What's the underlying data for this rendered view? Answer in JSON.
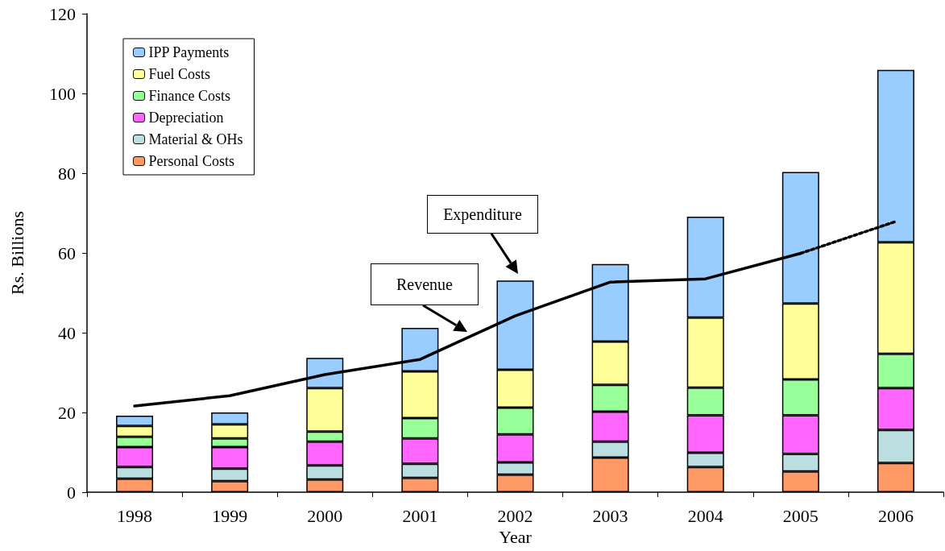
{
  "chart_data": {
    "type": "bar",
    "stacked": true,
    "xlabel": "Year",
    "ylabel": "Rs. Billions",
    "categories": [
      "1998",
      "1999",
      "2000",
      "2001",
      "2002",
      "2003",
      "2004",
      "2005",
      "2006"
    ],
    "series": [
      {
        "name": "Personal Costs",
        "color": "#ff9966",
        "values": [
          3.4,
          2.8,
          3.2,
          3.6,
          4.4,
          8.7,
          6.3,
          5.2,
          7.3
        ]
      },
      {
        "name": "Material & OHs",
        "color": "#bbdfe0",
        "values": [
          2.9,
          3.1,
          3.5,
          3.5,
          3.1,
          4.0,
          3.6,
          4.4,
          8.3
        ]
      },
      {
        "name": "Depreciation",
        "color": "#ff66ff",
        "values": [
          5.0,
          5.4,
          6.0,
          6.4,
          7.0,
          7.5,
          9.4,
          9.7,
          10.5
        ]
      },
      {
        "name": "Finance Costs",
        "color": "#99ff99",
        "values": [
          2.6,
          2.2,
          2.5,
          5.1,
          6.7,
          6.7,
          6.9,
          9.0,
          8.6
        ]
      },
      {
        "name": "Fuel Costs",
        "color": "#ffff99",
        "values": [
          2.7,
          3.5,
          10.9,
          11.7,
          9.5,
          10.9,
          17.6,
          19.0,
          28.0
        ]
      },
      {
        "name": "IPP Payments",
        "color": "#99ccff",
        "values": [
          2.6,
          3.0,
          7.6,
          10.9,
          22.4,
          19.4,
          25.3,
          33.0,
          43.2
        ]
      },
      {
        "type": "line",
        "color": "#000000",
        "line_style": "solid",
        "values": [
          21.6,
          24.2,
          29.5,
          33.3,
          44.2,
          52.7,
          53.5,
          59.9,
          null
        ]
      },
      {
        "type": "line",
        "color": "#000000",
        "line_style": "dotted",
        "values": [
          null,
          null,
          null,
          null,
          null,
          null,
          null,
          59.9,
          67.9
        ]
      }
    ],
    "ylim": [
      0,
      120
    ],
    "yticks": [
      0,
      20,
      40,
      60,
      80,
      100,
      120
    ],
    "grid": false,
    "legend": "top left",
    "marker": "none",
    "annotations": [
      "Expenditure",
      "Revenue"
    ]
  }
}
